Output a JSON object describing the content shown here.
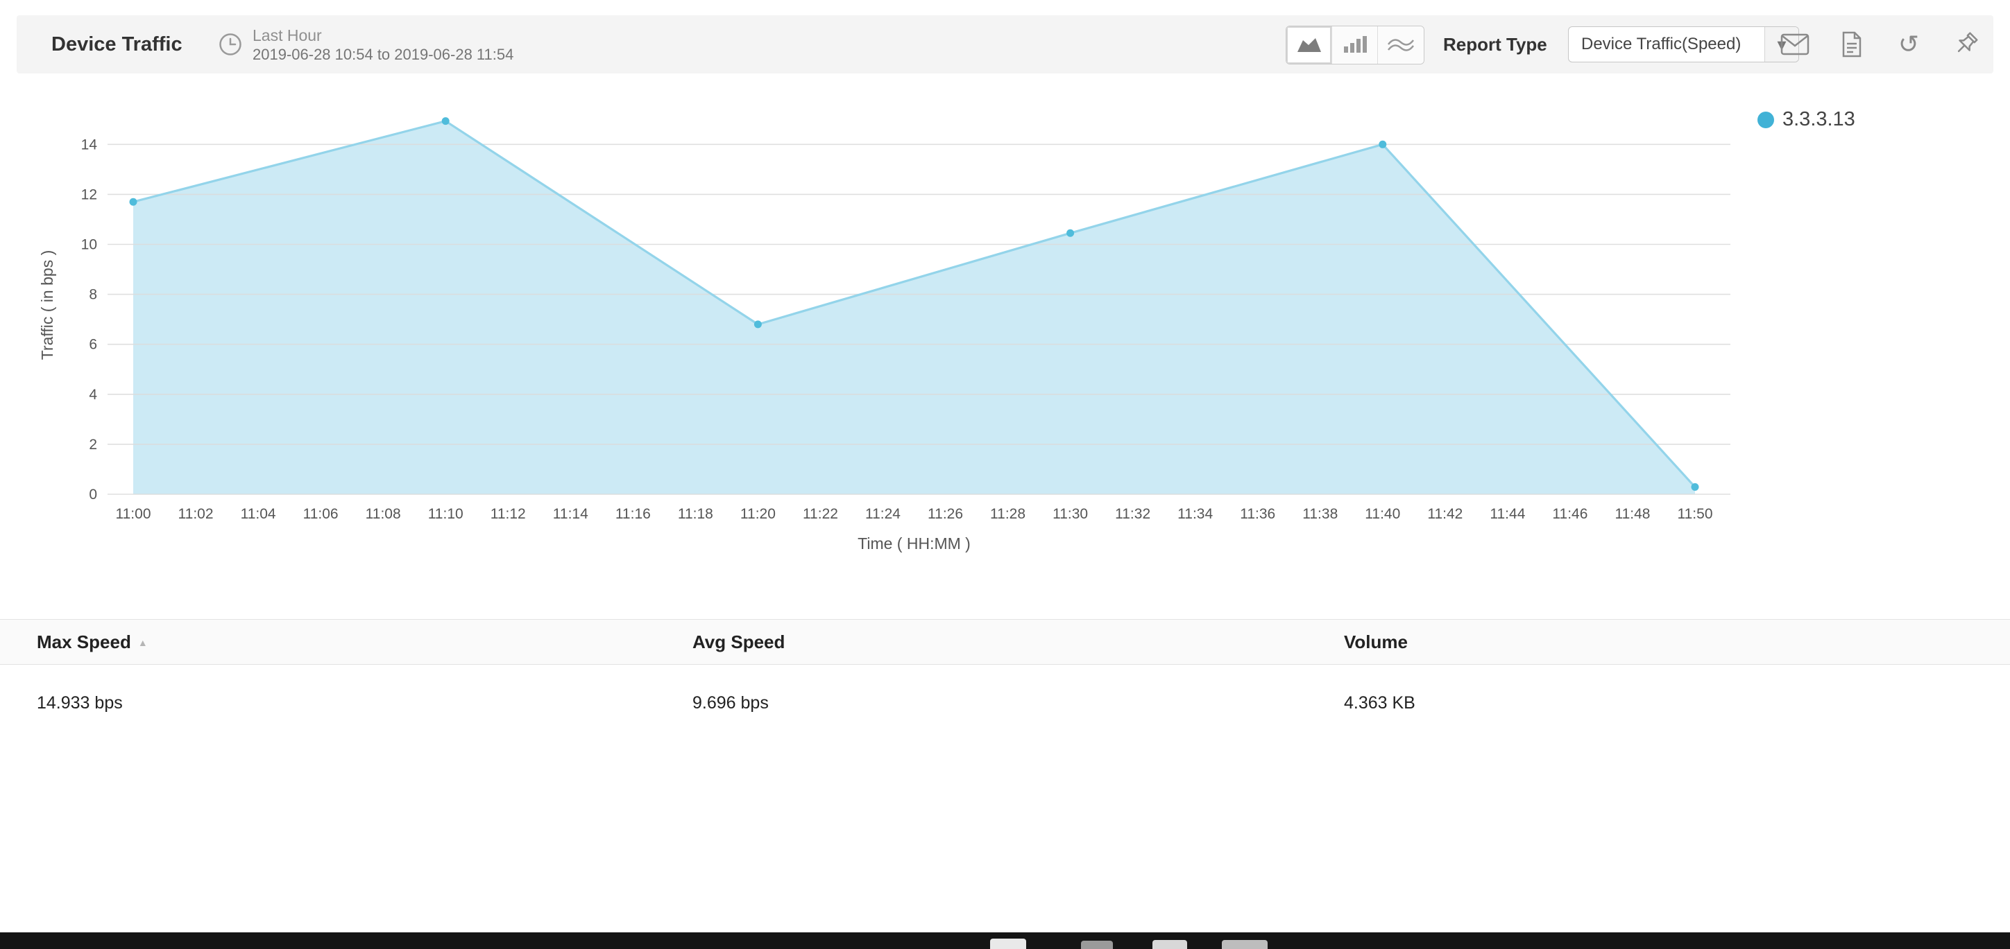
{
  "header": {
    "title": "Device Traffic",
    "time_range_label": "Last Hour",
    "time_range_value": "2019-06-28 10:54 to 2019-06-28 11:54",
    "report_type_label": "Report Type",
    "report_type_dropdown_value": "Device Traffic(Speed)"
  },
  "icons": {
    "chevron_down": "▾",
    "refresh": "↺",
    "sort_asc": "▲"
  },
  "chart_data": {
    "type": "area",
    "title": "",
    "xlabel": "Time ( HH:MM )",
    "ylabel": "Traffic ( in bps )",
    "x_ticks": [
      "11:00",
      "11:02",
      "11:04",
      "11:06",
      "11:08",
      "11:10",
      "11:12",
      "11:14",
      "11:16",
      "11:18",
      "11:20",
      "11:22",
      "11:24",
      "11:26",
      "11:28",
      "11:30",
      "11:32",
      "11:34",
      "11:36",
      "11:38",
      "11:40",
      "11:42",
      "11:44",
      "11:46",
      "11:48",
      "11:50"
    ],
    "y_ticks": [
      0,
      2,
      4,
      6,
      8,
      10,
      12,
      14
    ],
    "ylim": [
      0,
      15.5
    ],
    "grid": true,
    "legend_position": "right",
    "series": [
      {
        "name": "3.3.3.13",
        "x": [
          "11:00",
          "11:10",
          "11:20",
          "11:30",
          "11:40",
          "11:50"
        ],
        "values": [
          11.7,
          14.933,
          6.8,
          10.45,
          14,
          0.29
        ],
        "line_color": "#93d4ea",
        "fill_color": "#c6e8f4",
        "point_color": "#4fbcdb"
      }
    ]
  },
  "table": {
    "columns": [
      "Max Speed",
      "Avg Speed",
      "Volume"
    ],
    "rows": [
      [
        "14.933 bps",
        "9.696 bps",
        "4.363 KB"
      ]
    ]
  }
}
